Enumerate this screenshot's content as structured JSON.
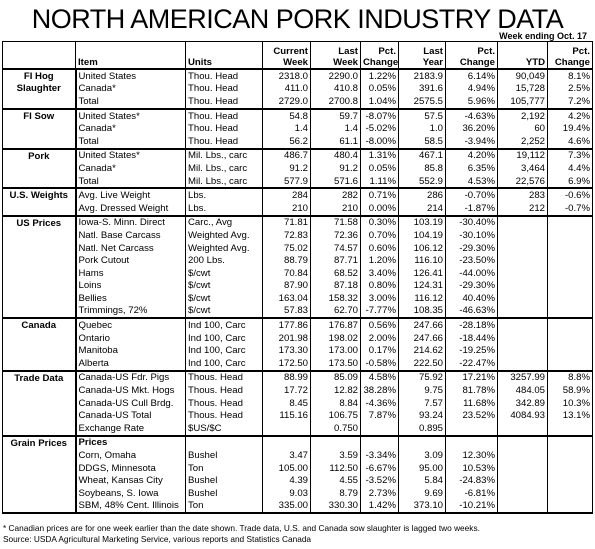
{
  "title": "NORTH AMERICAN PORK INDUSTRY DATA",
  "subtitle": "Week ending Oct. 17",
  "header": {
    "columns": [
      "Item",
      "Units",
      "Current Week",
      "Last Week",
      "Pct. Change",
      "Last Year",
      "Pct. Change",
      "YTD",
      "Pct. Change"
    ]
  },
  "groups": [
    {
      "label": "FI Hog Slaughter",
      "rows": [
        [
          "United States",
          "Thou. Head",
          "2318.0",
          "2290.0",
          "1.22%",
          "2183.9",
          "6.14%",
          "90,049",
          "8.1%"
        ],
        [
          "Canada*",
          "Thou. Head",
          "411.0",
          "410.8",
          "0.05%",
          "391.6",
          "4.94%",
          "15,728",
          "2.5%"
        ],
        [
          "Total",
          "Thou. Head",
          "2729.0",
          "2700.8",
          "1.04%",
          "2575.5",
          "5.96%",
          "105,777",
          "7.2%"
        ]
      ]
    },
    {
      "label": "FI Sow",
      "rows": [
        [
          "United States*",
          "Thou. Head",
          "54.8",
          "59.7",
          "-8.07%",
          "57.5",
          "-4.63%",
          "2,192",
          "4.2%"
        ],
        [
          "Canada*",
          "Thou. Head",
          "1.4",
          "1.4",
          "-5.02%",
          "1.0",
          "36.20%",
          "60",
          "19.4%"
        ],
        [
          "Total",
          "Thou. Head",
          "56.2",
          "61.1",
          "-8.00%",
          "58.5",
          "-3.94%",
          "2,252",
          "4.6%"
        ]
      ]
    },
    {
      "label": "Pork",
      "rows": [
        [
          "United States*",
          "Mil. Lbs., carc",
          "486.7",
          "480.4",
          "1.31%",
          "467.1",
          "4.20%",
          "19,112",
          "7.3%"
        ],
        [
          "Canada*",
          "Mil. Lbs., carc",
          "91.2",
          "91.2",
          "0.05%",
          "85.8",
          "6.35%",
          "3,464",
          "4.4%"
        ],
        [
          "Total",
          "Mil. Lbs., carc",
          "577.9",
          "571.6",
          "1.11%",
          "552.9",
          "4.53%",
          "22,576",
          "6.9%"
        ]
      ]
    },
    {
      "label": "U.S. Weights",
      "rows": [
        [
          "Avg. Live Weight",
          "Lbs.",
          "284",
          "282",
          "0.71%",
          "286",
          "-0.70%",
          "283",
          "-0.6%"
        ],
        [
          "Avg. Dressed Weight",
          "Lbs.",
          "210",
          "210",
          "0.00%",
          "214",
          "-1.87%",
          "212",
          "-0.7%"
        ]
      ]
    },
    {
      "label": "US Prices",
      "rows": [
        [
          "Iowa-S. Minn. Direct",
          "Carc., Avg",
          "71.81",
          "71.58",
          "0.30%",
          "103.19",
          "-30.40%",
          null,
          null
        ],
        [
          "Natl. Base Carcass",
          "Weighted Avg.",
          "72.83",
          "72.36",
          "0.70%",
          "104.19",
          "-30.10%",
          null,
          null
        ],
        [
          "Natl. Net Carcass",
          "Weighted Avg.",
          "75.02",
          "74.57",
          "0.60%",
          "106.12",
          "-29.30%",
          null,
          null
        ],
        [
          "Pork Cutout",
          "200 Lbs.",
          "88.79",
          "87.71",
          "1.20%",
          "116.10",
          "-23.50%",
          null,
          null
        ],
        [
          "Hams",
          "$/cwt",
          "70.84",
          "68.52",
          "3.40%",
          "126.41",
          "-44.00%",
          null,
          null
        ],
        [
          "Loins",
          "$/cwt",
          "87.90",
          "87.18",
          "0.80%",
          "124.31",
          "-29.30%",
          null,
          null
        ],
        [
          "Bellies",
          "$/cwt",
          "163.04",
          "158.32",
          "3.00%",
          "116.12",
          "40.40%",
          null,
          null
        ],
        [
          "Trimmings, 72%",
          "$/cwt",
          "57.83",
          "62.70",
          "-7.77%",
          "108.35",
          "-46.63%",
          null,
          null
        ]
      ]
    },
    {
      "label": "Canada",
      "rows": [
        [
          "Quebec",
          "Ind 100, Carc",
          "177.86",
          "176.87",
          "0.56%",
          "247.66",
          "-28.18%",
          null,
          null
        ],
        [
          "Ontario",
          "Ind 100, Carc",
          "201.98",
          "198.02",
          "2.00%",
          "247.66",
          "-18.44%",
          null,
          null
        ],
        [
          "Manitoba",
          "Ind 100, Carc",
          "173.30",
          "173.00",
          "0.17%",
          "214.62",
          "-19.25%",
          null,
          null
        ],
        [
          "Alberta",
          "Ind 100, Carc",
          "172.50",
          "173.50",
          "-0.58%",
          "222.50",
          "-22.47%",
          null,
          null
        ]
      ]
    },
    {
      "label": "Trade Data",
      "rows": [
        [
          "Canada-US Fdr. Pigs",
          "Thous. Head",
          "88.99",
          "85.09",
          "4.58%",
          "75.92",
          "17.21%",
          "3257.99",
          "8.8%"
        ],
        [
          "Canada-US Mkt. Hogs",
          "Thous. Head",
          "17.72",
          "12.82",
          "38.28%",
          "9.75",
          "81.78%",
          "484.05",
          "58.9%"
        ],
        [
          "Canada-US Cull Brdg.",
          "Thous. Head",
          "8.45",
          "8.84",
          "-4.36%",
          "7.57",
          "11.68%",
          "342.89",
          "10.3%"
        ],
        [
          "Canada-US Total",
          "Thous. Head",
          "115.16",
          "106.75",
          "7.87%",
          "93.24",
          "23.52%",
          "4084.93",
          "13.1%"
        ],
        [
          "Exchange Rate",
          "$US/$C",
          null,
          "0.750",
          null,
          "0.895",
          null,
          null,
          null
        ]
      ]
    },
    {
      "label": "Grain Prices",
      "subheading": "Prices",
      "rows": [
        [
          "Corn, Omaha",
          "Bushel",
          "3.47",
          "3.59",
          "-3.34%",
          "3.09",
          "12.30%",
          null,
          null
        ],
        [
          "DDGS, Minnesota",
          "Ton",
          "105.00",
          "112.50",
          "-6.67%",
          "95.00",
          "10.53%",
          null,
          null
        ],
        [
          "Wheat, Kansas City",
          "Bushel",
          "4.39",
          "4.55",
          "-3.52%",
          "5.84",
          "-24.83%",
          null,
          null
        ],
        [
          "Soybeans, S. Iowa",
          "Bushel",
          "9.03",
          "8.79",
          "2.73%",
          "9.69",
          "-6.81%",
          null,
          null
        ],
        [
          "SBM, 48% Cent. Illinois",
          "Ton",
          "335.00",
          "330.30",
          "1.42%",
          "373.10",
          "-10.21%",
          null,
          null
        ]
      ]
    }
  ],
  "footnotes": [
    "* Canadian prices are for one week earlier than the date shown.  Trade data, U.S. and Canada sow slaughter is lagged two weeks.",
    "Source:  USDA Agricultural Marketing Service, various reports and Statistics Canada"
  ]
}
